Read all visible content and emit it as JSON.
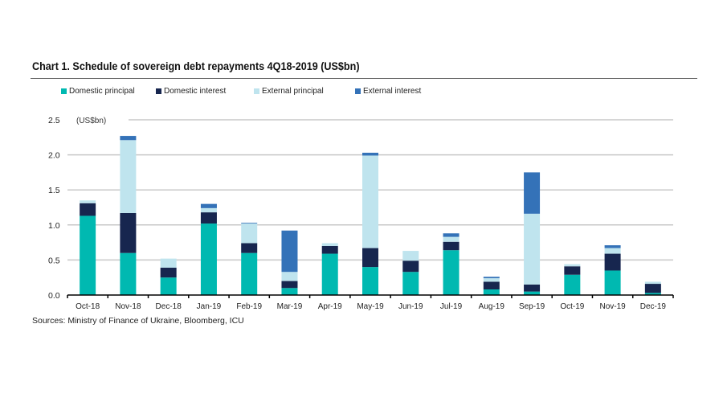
{
  "chart_data": {
    "type": "bar",
    "stacked": true,
    "title": "Chart 1. Schedule of sovereign debt repayments 4Q18-2019 (US$bn)",
    "ylabel": "(US$bn)",
    "ylim": [
      0,
      2.5
    ],
    "yticks": [
      "0.0",
      "0.5",
      "1.0",
      "1.5",
      "2.0",
      "2.5"
    ],
    "grid": true,
    "legend_position": "top-left",
    "categories": [
      "Oct-18",
      "Nov-18",
      "Dec-18",
      "Jan-19",
      "Feb-19",
      "Mar-19",
      "Apr-19",
      "May-19",
      "Jun-19",
      "Jul-19",
      "Aug-19",
      "Sep-19",
      "Oct-19",
      "Nov-19",
      "Dec-19"
    ],
    "series": [
      {
        "name": "Domestic principal",
        "color": "#00b9b1",
        "values": [
          1.13,
          0.6,
          0.25,
          1.02,
          0.6,
          0.1,
          0.59,
          0.4,
          0.33,
          0.64,
          0.08,
          0.05,
          0.29,
          0.35,
          0.03
        ]
      },
      {
        "name": "Domestic interest",
        "color": "#17264f",
        "values": [
          0.18,
          0.57,
          0.14,
          0.16,
          0.14,
          0.1,
          0.11,
          0.27,
          0.16,
          0.12,
          0.11,
          0.1,
          0.12,
          0.24,
          0.13
        ]
      },
      {
        "name": "External principal",
        "color": "#bfe4ee",
        "values": [
          0.04,
          1.04,
          0.13,
          0.06,
          0.28,
          0.13,
          0.04,
          1.32,
          0.14,
          0.07,
          0.05,
          1.01,
          0.03,
          0.08,
          0.03
        ]
      },
      {
        "name": "External interest",
        "color": "#3472b8",
        "values": [
          0.0,
          0.06,
          0.0,
          0.06,
          0.01,
          0.59,
          0.0,
          0.04,
          0.0,
          0.05,
          0.02,
          0.59,
          0.0,
          0.04,
          0.0
        ]
      }
    ],
    "source": "Sources: Ministry of Finance of Ukraine, Bloomberg, ICU"
  }
}
